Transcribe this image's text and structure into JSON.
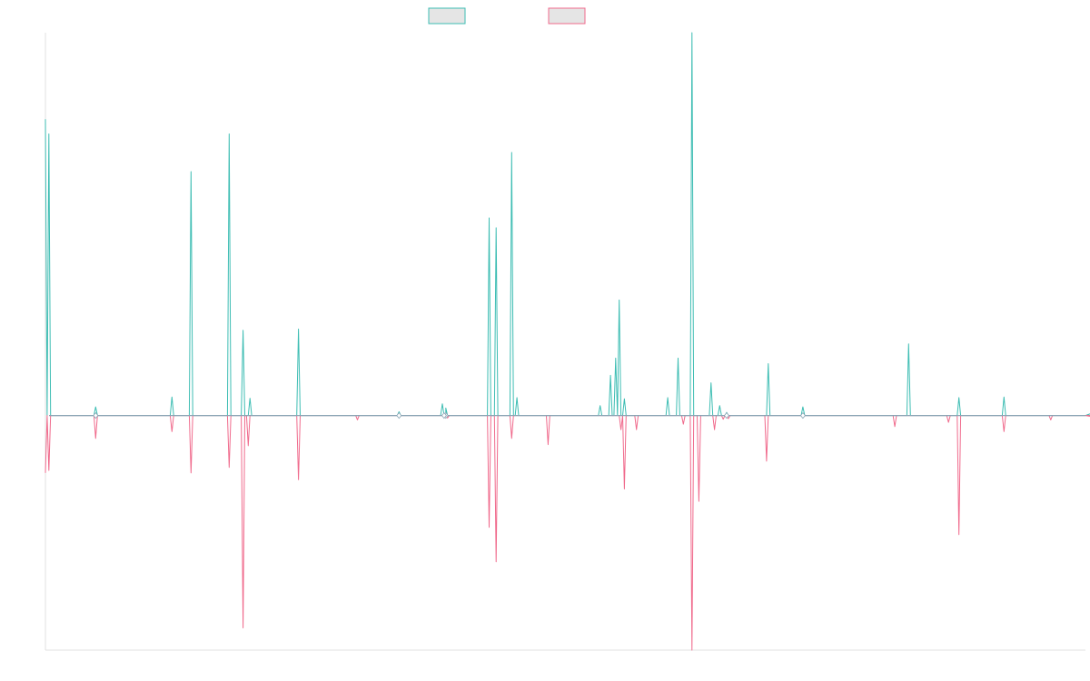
{
  "chart_data": {
    "type": "line",
    "title": "",
    "xlabel": "",
    "ylabel": "",
    "legend_position": "top-center",
    "grid": false,
    "x_range": [
      0,
      300
    ],
    "ylim": [
      -38,
      62
    ],
    "baseline": 0,
    "colors": {
      "series_a": "#3dbdb3",
      "series_b": "#f06a8c",
      "baseline": "#8aa4b4",
      "axis": "#e0e0e0",
      "legend_fill": "#e5e5e5"
    },
    "series": [
      {
        "color": "#3dbdb3",
        "direction": "up",
        "spikes": [
          [
            0,
            48.0
          ],
          [
            1,
            45.6
          ],
          [
            14.5,
            1.4
          ],
          [
            36.5,
            3.0
          ],
          [
            42,
            39.5
          ],
          [
            53,
            45.6
          ],
          [
            57,
            13.8
          ],
          [
            59,
            2.8
          ],
          [
            73,
            14.0
          ],
          [
            102,
            0.6
          ],
          [
            114.5,
            1.9
          ],
          [
            115.5,
            1.2
          ],
          [
            115,
            0.4
          ],
          [
            128,
            32.0
          ],
          [
            130,
            30.4
          ],
          [
            134.5,
            42.6
          ],
          [
            136,
            2.9
          ],
          [
            160,
            1.6
          ],
          [
            163,
            6.5
          ],
          [
            164.5,
            9.3
          ],
          [
            165.5,
            18.7
          ],
          [
            167,
            2.7
          ],
          [
            179.5,
            2.9
          ],
          [
            182.5,
            9.3
          ],
          [
            186.5,
            62.0
          ],
          [
            192,
            5.3
          ],
          [
            194.5,
            1.6
          ],
          [
            196.5,
            0.5
          ],
          [
            208.5,
            8.4
          ],
          [
            218.5,
            1.4
          ],
          [
            249,
            11.6
          ],
          [
            263.5,
            2.9
          ],
          [
            276.5,
            3.0
          ],
          [
            304,
            0.8
          ]
        ]
      },
      {
        "color": "#f06a8c",
        "direction": "down",
        "spikes": [
          [
            0,
            9.3
          ],
          [
            1,
            8.9
          ],
          [
            14.5,
            3.7
          ],
          [
            36.5,
            2.6
          ],
          [
            42,
            9.3
          ],
          [
            53,
            8.4
          ],
          [
            57,
            34.4
          ],
          [
            58.5,
            4.9
          ],
          [
            73,
            10.4
          ],
          [
            90,
            0.7
          ],
          [
            116,
            0.4
          ],
          [
            128,
            18.1
          ],
          [
            130,
            23.7
          ],
          [
            134.5,
            3.7
          ],
          [
            145,
            4.7
          ],
          [
            166,
            2.3
          ],
          [
            167,
            11.9
          ],
          [
            170.5,
            2.3
          ],
          [
            184,
            1.4
          ],
          [
            186.5,
            38.0
          ],
          [
            188.5,
            13.9
          ],
          [
            193,
            2.3
          ],
          [
            195.5,
            0.6
          ],
          [
            197,
            0.5
          ],
          [
            208,
            7.4
          ],
          [
            245,
            1.8
          ],
          [
            260.5,
            1.1
          ],
          [
            263.5,
            19.3
          ],
          [
            276.5,
            2.6
          ],
          [
            290,
            0.7
          ],
          [
            304,
            0.4
          ]
        ]
      }
    ]
  }
}
